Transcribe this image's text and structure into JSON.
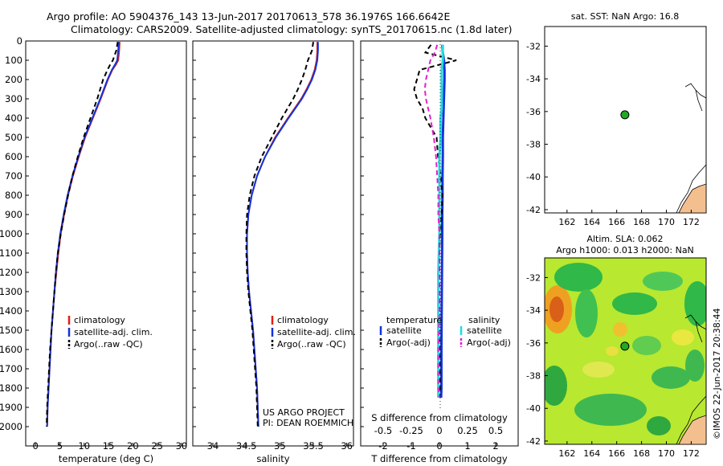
{
  "header": {
    "line1": "Argo profile: AO 5904376_143 13-Jun-2017 20170613_578 36.1976S 166.6642E",
    "line2": "Climatology: CARS2009. Satellite-adjusted climatology: synTS_20170615.nc (1.8d later)"
  },
  "chart_data": [
    {
      "type": "line",
      "panel": "temperature",
      "xlabel": "temperature (deg C)",
      "ylabel": "",
      "xlim": [
        -2,
        31
      ],
      "ylim": [
        2100,
        0
      ],
      "xticks": [
        "0",
        "5",
        "10",
        "15",
        "20",
        "25",
        "30"
      ],
      "yticks": [
        "0",
        "100",
        "200",
        "300",
        "400",
        "500",
        "600",
        "700",
        "800",
        "900",
        "1000",
        "1100",
        "1200",
        "1300",
        "1400",
        "1500",
        "1600",
        "1700",
        "1800",
        "1900",
        "2000"
      ],
      "depths": [
        5,
        50,
        100,
        120,
        150,
        200,
        300,
        400,
        500,
        600,
        700,
        800,
        900,
        1000,
        1100,
        1200,
        1300,
        1400,
        1500,
        1600,
        1700,
        1800,
        1900,
        2000
      ],
      "legend": [
        "climatology",
        "satellite-adj. clim.",
        "Argo(..raw -QC)"
      ],
      "series": [
        {
          "name": "climatology",
          "color": "#dd2211",
          "values": [
            17.3,
            17.2,
            17.0,
            16.6,
            15.8,
            14.9,
            13.4,
            11.8,
            10.2,
            8.9,
            7.7,
            6.7,
            5.9,
            5.2,
            4.7,
            4.3,
            3.9,
            3.6,
            3.3,
            3.1,
            2.9,
            2.7,
            2.5,
            2.4
          ]
        },
        {
          "name": "satellite-adj. clim.",
          "color": "#1133dd",
          "values": [
            17.1,
            17.0,
            16.8,
            16.4,
            15.7,
            14.8,
            13.3,
            11.7,
            10.1,
            8.8,
            7.6,
            6.6,
            5.8,
            5.1,
            4.6,
            4.2,
            3.9,
            3.6,
            3.3,
            3.1,
            2.9,
            2.7,
            2.5,
            2.4
          ]
        },
        {
          "name": "Argo(..raw -QC)",
          "color": "#000000",
          "values": [
            16.9,
            16.6,
            15.9,
            15.4,
            14.8,
            13.9,
            12.7,
            11.3,
            9.9,
            8.7,
            7.6,
            6.7,
            5.9,
            5.2,
            4.6,
            4.2,
            3.9,
            3.6,
            3.3,
            3.0,
            2.8,
            2.6,
            2.4,
            2.3
          ]
        }
      ]
    },
    {
      "type": "line",
      "panel": "salinity",
      "xlabel": "salinity",
      "xlim": [
        33.7,
        36.1
      ],
      "ylim": [
        2100,
        0
      ],
      "xticks": [
        "34",
        "34.5",
        "35",
        "35.5",
        "36"
      ],
      "depths": [
        5,
        50,
        100,
        150,
        200,
        250,
        300,
        400,
        500,
        600,
        700,
        800,
        900,
        1000,
        1100,
        1200,
        1300,
        1400,
        1500,
        1600,
        1700,
        1800,
        1900,
        2000
      ],
      "legend": [
        "climatology",
        "satellite-adj. clim.",
        "Argo(..raw -QC)"
      ],
      "series": [
        {
          "name": "climatology",
          "color": "#dd2211",
          "values": [
            35.56,
            35.56,
            35.55,
            35.52,
            35.47,
            35.4,
            35.32,
            35.12,
            34.93,
            34.78,
            34.66,
            34.58,
            34.53,
            34.51,
            34.51,
            34.52,
            34.54,
            34.57,
            34.6,
            34.62,
            34.64,
            34.66,
            34.67,
            34.68
          ]
        },
        {
          "name": "satellite-adj. clim.",
          "color": "#1133dd",
          "values": [
            35.57,
            35.57,
            35.56,
            35.53,
            35.48,
            35.41,
            35.33,
            35.13,
            34.94,
            34.78,
            34.66,
            34.58,
            34.53,
            34.51,
            34.51,
            34.52,
            34.54,
            34.57,
            34.6,
            34.62,
            34.64,
            34.66,
            34.67,
            34.68
          ]
        },
        {
          "name": "Argo(..raw -QC)",
          "color": "#000000",
          "values": [
            35.5,
            35.48,
            35.42,
            35.38,
            35.33,
            35.27,
            35.2,
            35.03,
            34.88,
            34.73,
            34.62,
            34.55,
            34.51,
            34.5,
            34.5,
            34.51,
            34.53,
            34.56,
            34.59,
            34.61,
            34.63,
            34.65,
            34.66,
            34.67
          ]
        }
      ],
      "annotation": [
        "US ARGO PROJECT",
        "PI: DEAN ROEMMICH"
      ]
    },
    {
      "type": "line",
      "panel": "difference",
      "xlabel": "T difference from climatology",
      "xlabel2": "S difference from climatology",
      "xlim": [
        -2.8,
        2.8
      ],
      "ylim": [
        2100,
        0
      ],
      "xticks": [
        "-2",
        "-1",
        "0",
        "1",
        "2"
      ],
      "xticks2": [
        "-0.5",
        "-0.25",
        "0",
        "0.25",
        "0.5"
      ],
      "depths": [
        20,
        60,
        100,
        150,
        200,
        250,
        300,
        350,
        400,
        500,
        600,
        700,
        800,
        900,
        1000,
        1200,
        1400,
        1600,
        1800,
        1850
      ],
      "legend_headers": [
        "temperature",
        "salinity"
      ],
      "legend": [
        "satellite",
        "Argo(-adj)",
        "satellite",
        "Argo(-adj)"
      ],
      "series": [
        {
          "name": "satellite (temperature)",
          "color": "#1133dd",
          "values": [
            0.1,
            0.12,
            0.16,
            0.18,
            0.18,
            0.17,
            0.16,
            0.15,
            0.14,
            0.12,
            0.12,
            0.11,
            0.11,
            0.1,
            0.1,
            0.09,
            0.08,
            0.07,
            0.07,
            0.06
          ]
        },
        {
          "name": "Argo(-adj) (temperature)",
          "color": "#000000",
          "values": [
            -0.3,
            -0.5,
            0.6,
            -0.7,
            -0.8,
            -0.9,
            -0.8,
            -0.6,
            -0.5,
            -0.1,
            -0.05,
            0.05,
            0.1,
            0.08,
            0.03,
            -0.05,
            -0.02,
            0.0,
            0.02,
            0.0
          ]
        },
        {
          "name": "satellite (salinity)",
          "color": "#22dddd",
          "values": [
            0.03,
            0.03,
            0.03,
            0.02,
            0.02,
            0.02,
            0.02,
            0.02,
            0.01,
            0.01,
            0.0,
            0.0,
            0.0,
            0.0,
            0.0,
            -0.01,
            -0.01,
            -0.01,
            -0.01,
            -0.01
          ]
        },
        {
          "name": "Argo(-adj) (salinity)",
          "color": "#dd22cc",
          "values": [
            -0.02,
            -0.04,
            -0.08,
            -0.1,
            -0.12,
            -0.13,
            -0.12,
            -0.1,
            -0.08,
            -0.05,
            -0.03,
            -0.02,
            -0.01,
            -0.01,
            0.0,
            0.0,
            0.0,
            -0.01,
            -0.01,
            0.0
          ]
        }
      ]
    },
    {
      "type": "scatter",
      "panel": "sst-map",
      "title": "sat. SST: NaN Argo: 16.8",
      "xlim": [
        160.2,
        173.2
      ],
      "ylim": [
        -42.2,
        -30.8
      ],
      "xticks": [
        "162",
        "164",
        "166",
        "168",
        "170",
        "172"
      ],
      "yticks": [
        "-32",
        "-34",
        "-36",
        "-38",
        "-40",
        "-42"
      ],
      "points": [
        {
          "x": 166.66,
          "y": -36.2,
          "label": "Argo float"
        }
      ]
    },
    {
      "type": "heatmap",
      "panel": "sla-map",
      "title": "Altim. SLA: 0.062",
      "subtitle": "Argo h1000: 0.013 h2000: NaN",
      "xlim": [
        160.2,
        173.2
      ],
      "ylim": [
        -42.2,
        -30.8
      ],
      "xticks": [
        "162",
        "164",
        "166",
        "168",
        "170",
        "172"
      ],
      "yticks": [
        "-32",
        "-34",
        "-36",
        "-38",
        "-40",
        "-42"
      ],
      "points": [
        {
          "x": 166.66,
          "y": -36.2,
          "label": "Argo float"
        }
      ]
    }
  ],
  "credit": "©IMOS 22-Jun-2017 20:38:44",
  "colors": {
    "land": "#f4bf8f",
    "argo_marker": "#22aa22"
  }
}
